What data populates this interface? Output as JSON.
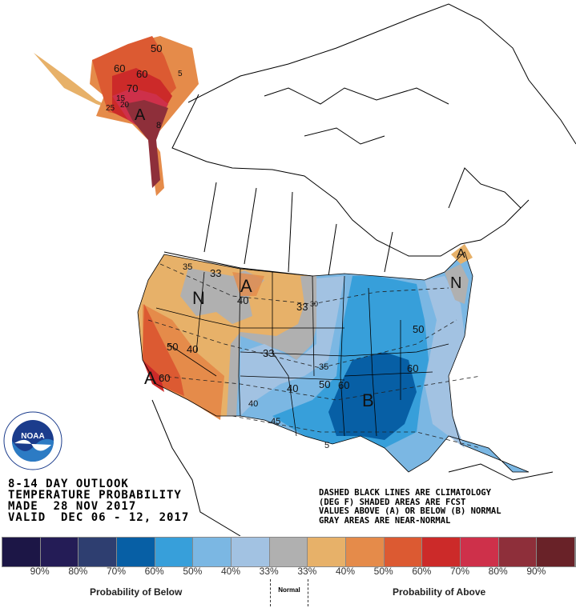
{
  "header": {
    "line1": "8-14 DAY OUTLOOK",
    "line2": "TEMPERATURE PROBABILITY",
    "line3": "MADE  28 NOV 2017",
    "line4": "VALID  DEC 06 - 12, 2017"
  },
  "note": {
    "line1": "DASHED BLACK LINES ARE CLIMATOLOGY",
    "line2": "(DEG F) SHADED AREAS ARE FCST",
    "line3": "VALUES ABOVE (A) OR BELOW (B) NORMAL",
    "line4": "GRAY AREAS ARE NEAR-NORMAL"
  },
  "logo": {
    "text": "NOAA",
    "ring_text": "NATIONAL OCEANIC AND ATMOSPHERIC ADMINISTRATION · U.S. DEPARTMENT OF COMMERCE"
  },
  "map": {
    "labels": {
      "above": "A",
      "below": "B",
      "normal": "N"
    },
    "contours": [
      "50",
      "60",
      "60",
      "70",
      "15",
      "20",
      "25",
      "5",
      "8",
      "35",
      "33",
      "40",
      "33",
      "30",
      "50",
      "40",
      "60",
      "33",
      "35",
      "40",
      "50",
      "60",
      "40",
      "45",
      "5",
      "60",
      "50"
    ]
  },
  "legend": {
    "colors": [
      "#1C1646",
      "#241C56",
      "#2E3E70",
      "#075FA5",
      "#379FDA",
      "#7BB7E3",
      "#A2C2E2",
      "#B0B0B0",
      "#E7B169",
      "#E58B4A",
      "#DC5A32",
      "#CC2A29",
      "#CE304A",
      "#8E2F3A",
      "#692228"
    ],
    "ticks": [
      "90%",
      "80%",
      "70%",
      "60%",
      "50%",
      "40%",
      "33%",
      "33%",
      "40%",
      "50%",
      "60%",
      "70%",
      "80%",
      "90%"
    ],
    "below_label": "Probability of Below",
    "normal_label": "Normal",
    "above_label": "Probability of Above"
  }
}
